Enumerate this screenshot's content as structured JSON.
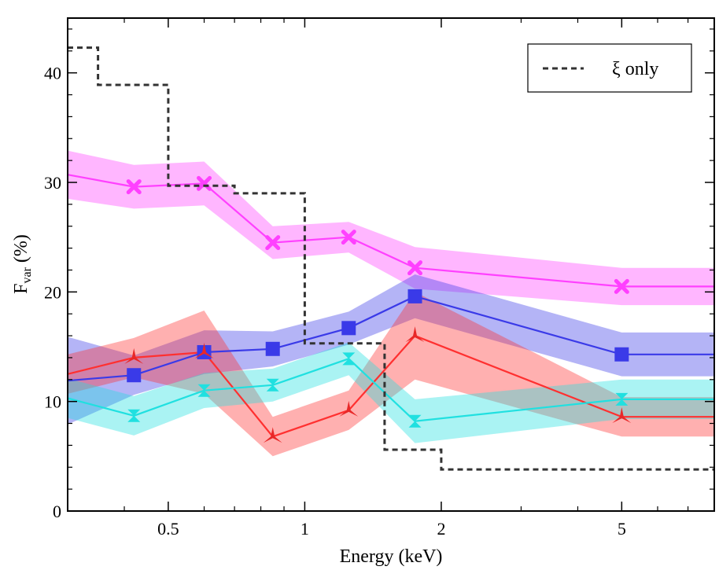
{
  "chart_data": {
    "type": "line",
    "xlabel": "Energy (keV)",
    "ylabel_main": "F",
    "ylabel_sub": "var",
    "ylabel_unit": "(%)",
    "x_scale": "log",
    "xlim": [
      0.3,
      8
    ],
    "ylim": [
      0,
      45
    ],
    "x_ticks": [
      {
        "value": 0.5,
        "label": "0.5"
      },
      {
        "value": 1,
        "label": "1"
      },
      {
        "value": 2,
        "label": "2"
      },
      {
        "value": 5,
        "label": "5"
      }
    ],
    "y_ticks": [
      {
        "value": 0,
        "label": "0"
      },
      {
        "value": 10,
        "label": "10"
      },
      {
        "value": 20,
        "label": "20"
      },
      {
        "value": 30,
        "label": "30"
      },
      {
        "value": 40,
        "label": "40"
      }
    ],
    "legend": {
      "position": "top-right",
      "label": "ξ only"
    },
    "step_series": {
      "color": "#333333",
      "style": "dashed",
      "edges": [
        0.3,
        0.35,
        0.5,
        0.7,
        1.0,
        1.5,
        2.0,
        8.0
      ],
      "values": [
        42.3,
        38.9,
        29.7,
        29.0,
        15.3,
        5.6,
        3.8
      ]
    },
    "series": [
      {
        "color": "#ff40ff",
        "marker": "x",
        "x": [
          0.3,
          0.42,
          0.6,
          0.85,
          1.25,
          1.75,
          5.0,
          8.0
        ],
        "y": [
          30.7,
          29.6,
          29.9,
          24.5,
          25.0,
          22.2,
          20.5,
          20.5
        ],
        "err": [
          2.2,
          2.0,
          2.0,
          1.5,
          1.4,
          1.9,
          1.7,
          1.7
        ],
        "markers_at": [
          0.42,
          0.6,
          0.85,
          1.25,
          1.75,
          5.0
        ]
      },
      {
        "color": "#3a3ae8",
        "marker": "square",
        "x": [
          0.3,
          0.42,
          0.6,
          0.85,
          1.25,
          1.75,
          5.0,
          8.0
        ],
        "y": [
          11.9,
          12.4,
          14.5,
          14.8,
          16.7,
          19.6,
          14.3,
          14.3
        ],
        "err": [
          4.0,
          1.8,
          2.0,
          1.6,
          1.5,
          2.0,
          2.0,
          2.0
        ],
        "markers_at": [
          0.42,
          0.6,
          0.85,
          1.25,
          1.75,
          5.0
        ]
      },
      {
        "color": "#ff3030",
        "marker": "tri",
        "x": [
          0.3,
          0.42,
          0.6,
          0.85,
          1.25,
          1.75,
          5.0,
          8.0
        ],
        "y": [
          12.5,
          14.0,
          14.5,
          6.8,
          9.2,
          16.0,
          8.6,
          8.6
        ],
        "err": [
          1.8,
          1.8,
          3.8,
          1.8,
          1.8,
          4.0,
          1.8,
          1.8
        ],
        "markers_at": [
          0.42,
          0.6,
          0.85,
          1.25,
          1.75,
          5.0
        ]
      },
      {
        "color": "#20e0e0",
        "marker": "hourglass",
        "x": [
          0.3,
          0.42,
          0.6,
          0.85,
          1.25,
          1.75,
          5.0,
          8.0
        ],
        "y": [
          10.3,
          8.7,
          11.0,
          11.5,
          13.9,
          8.2,
          10.2,
          10.2
        ],
        "err": [
          1.8,
          1.8,
          1.6,
          1.5,
          1.5,
          2.0,
          1.8,
          1.8
        ],
        "markers_at": [
          0.42,
          0.6,
          0.85,
          1.25,
          1.75,
          5.0
        ]
      }
    ]
  }
}
